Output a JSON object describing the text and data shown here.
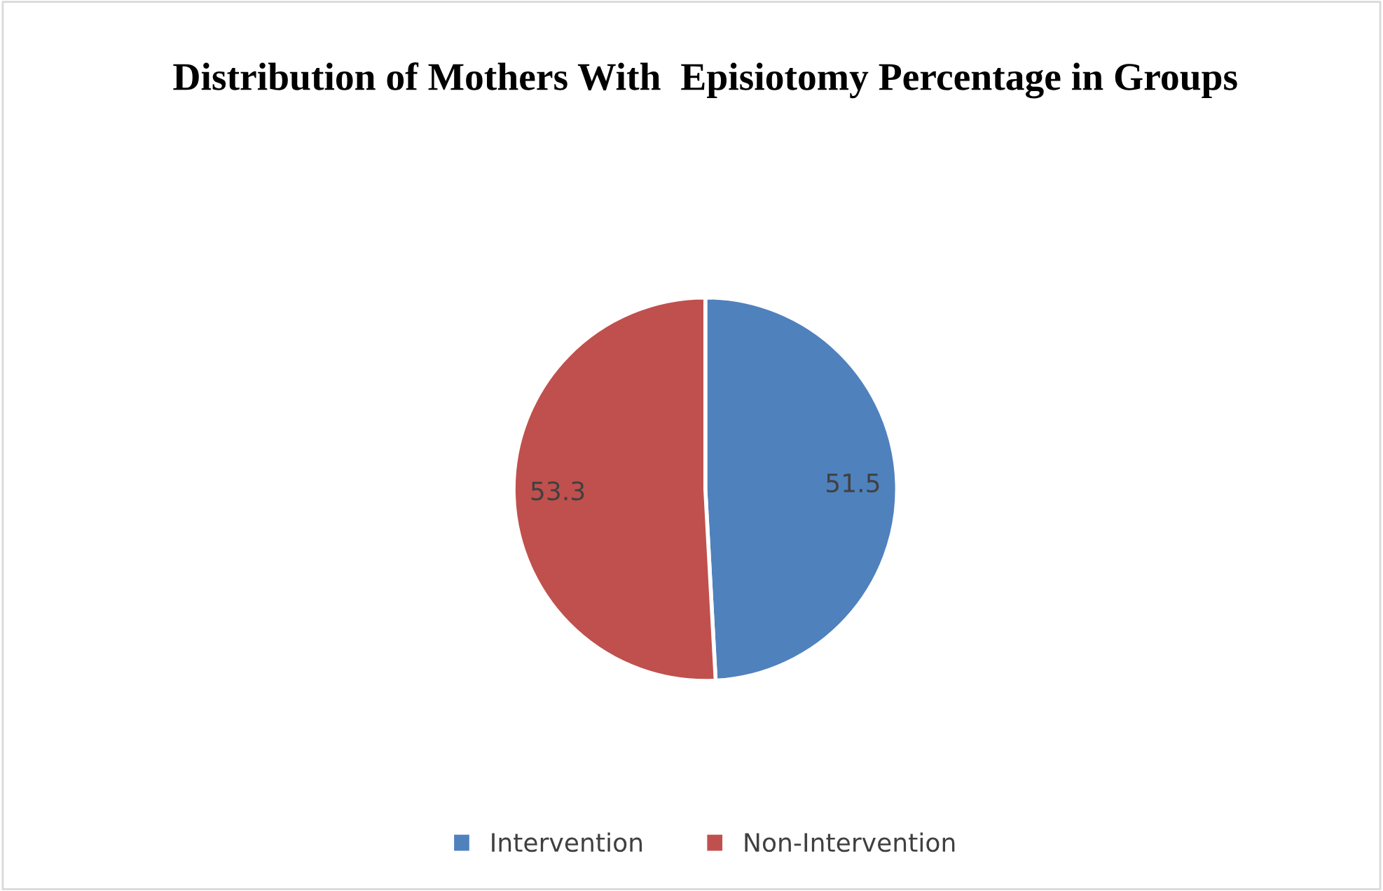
{
  "chart_data": {
    "type": "pie",
    "title": "Distribution of Mothers With  Episiotomy Percentage in Groups",
    "categories": [
      "Intervention",
      "Non-Intervention"
    ],
    "values": [
      51.5,
      53.3
    ],
    "colors": [
      "#4f81bd",
      "#c0504d"
    ],
    "data_labels": true,
    "legend": "bottom"
  }
}
